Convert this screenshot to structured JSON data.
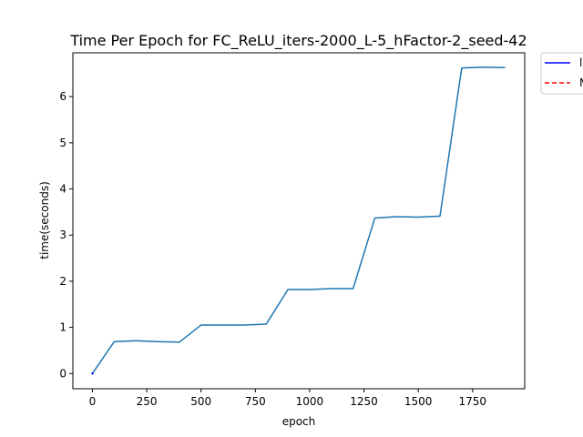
{
  "chart_data": {
    "type": "line",
    "title": "Time Per Epoch for FC_ReLU_iters-2000_L-5_hFactor-2_seed-42",
    "xlabel": "epoch",
    "ylabel": "time(seconds)",
    "xlim": [
      -90,
      1990
    ],
    "ylim": [
      -0.33,
      6.95
    ],
    "xticks": [
      0,
      250,
      500,
      750,
      1000,
      1250,
      1500,
      1750
    ],
    "yticks": [
      0,
      1,
      2,
      3,
      4,
      5,
      6
    ],
    "grid": false,
    "legend_placement": "outside-top-right",
    "series": [
      {
        "color": "#1f77b4",
        "x": [
          0,
          100,
          200,
          300,
          400,
          500,
          600,
          700,
          800,
          900,
          1000,
          1100,
          1200,
          1300,
          1400,
          1500,
          1600,
          1700,
          1800,
          1900
        ],
        "y": [
          0.0,
          0.69,
          0.71,
          0.69,
          0.68,
          1.05,
          1.05,
          1.05,
          1.07,
          1.82,
          1.82,
          1.84,
          1.84,
          3.37,
          3.4,
          3.39,
          3.41,
          6.62,
          6.64,
          6.63
        ]
      }
    ],
    "legend": [
      {
        "label": "l",
        "color": "#0000ff",
        "style": "solid"
      },
      {
        "label": "M",
        "color": "#ff0000",
        "style": "dashed"
      }
    ]
  }
}
